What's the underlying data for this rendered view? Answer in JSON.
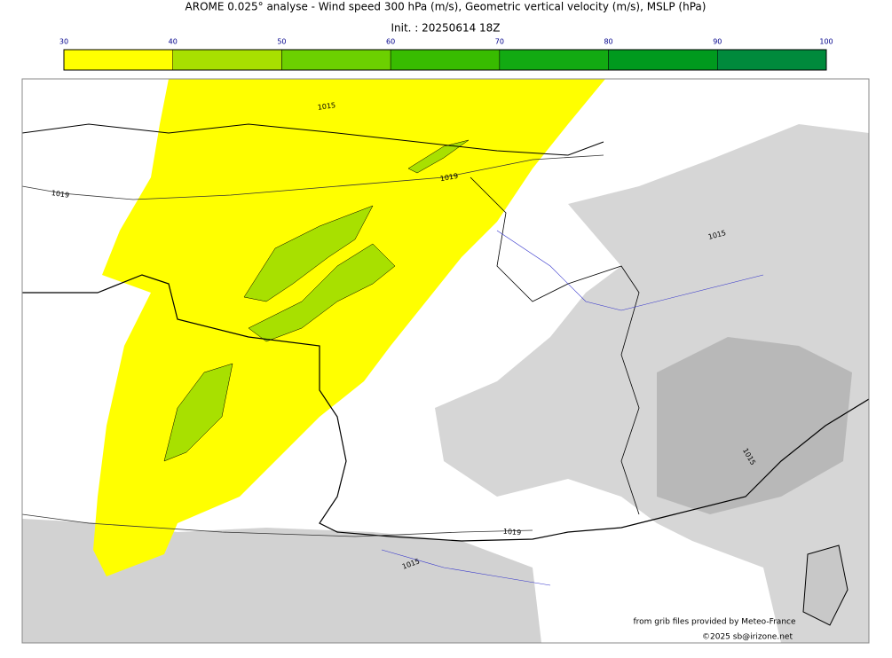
{
  "title": "AROME 0.025° analyse - Wind speed 300 hPa (m/s), Geometric vertical velocity (m/s), MSLP (hPa)",
  "init": "Init. : 20250614 18Z",
  "colorbar": {
    "ticks": [
      30,
      40,
      50,
      60,
      70,
      80,
      90,
      100
    ],
    "colors": [
      "#ffff00",
      "#a8e000",
      "#6cd000",
      "#38bc00",
      "#12aa12",
      "#009a1e",
      "#008a3c",
      "#00704c"
    ]
  },
  "isobar_labels": [
    "1015",
    "1019",
    "1019",
    "1015",
    "1015",
    "1019",
    "1015"
  ],
  "credits": [
    "from grib files provided by Meteo-France",
    "©2025 sb@irizone.net"
  ]
}
